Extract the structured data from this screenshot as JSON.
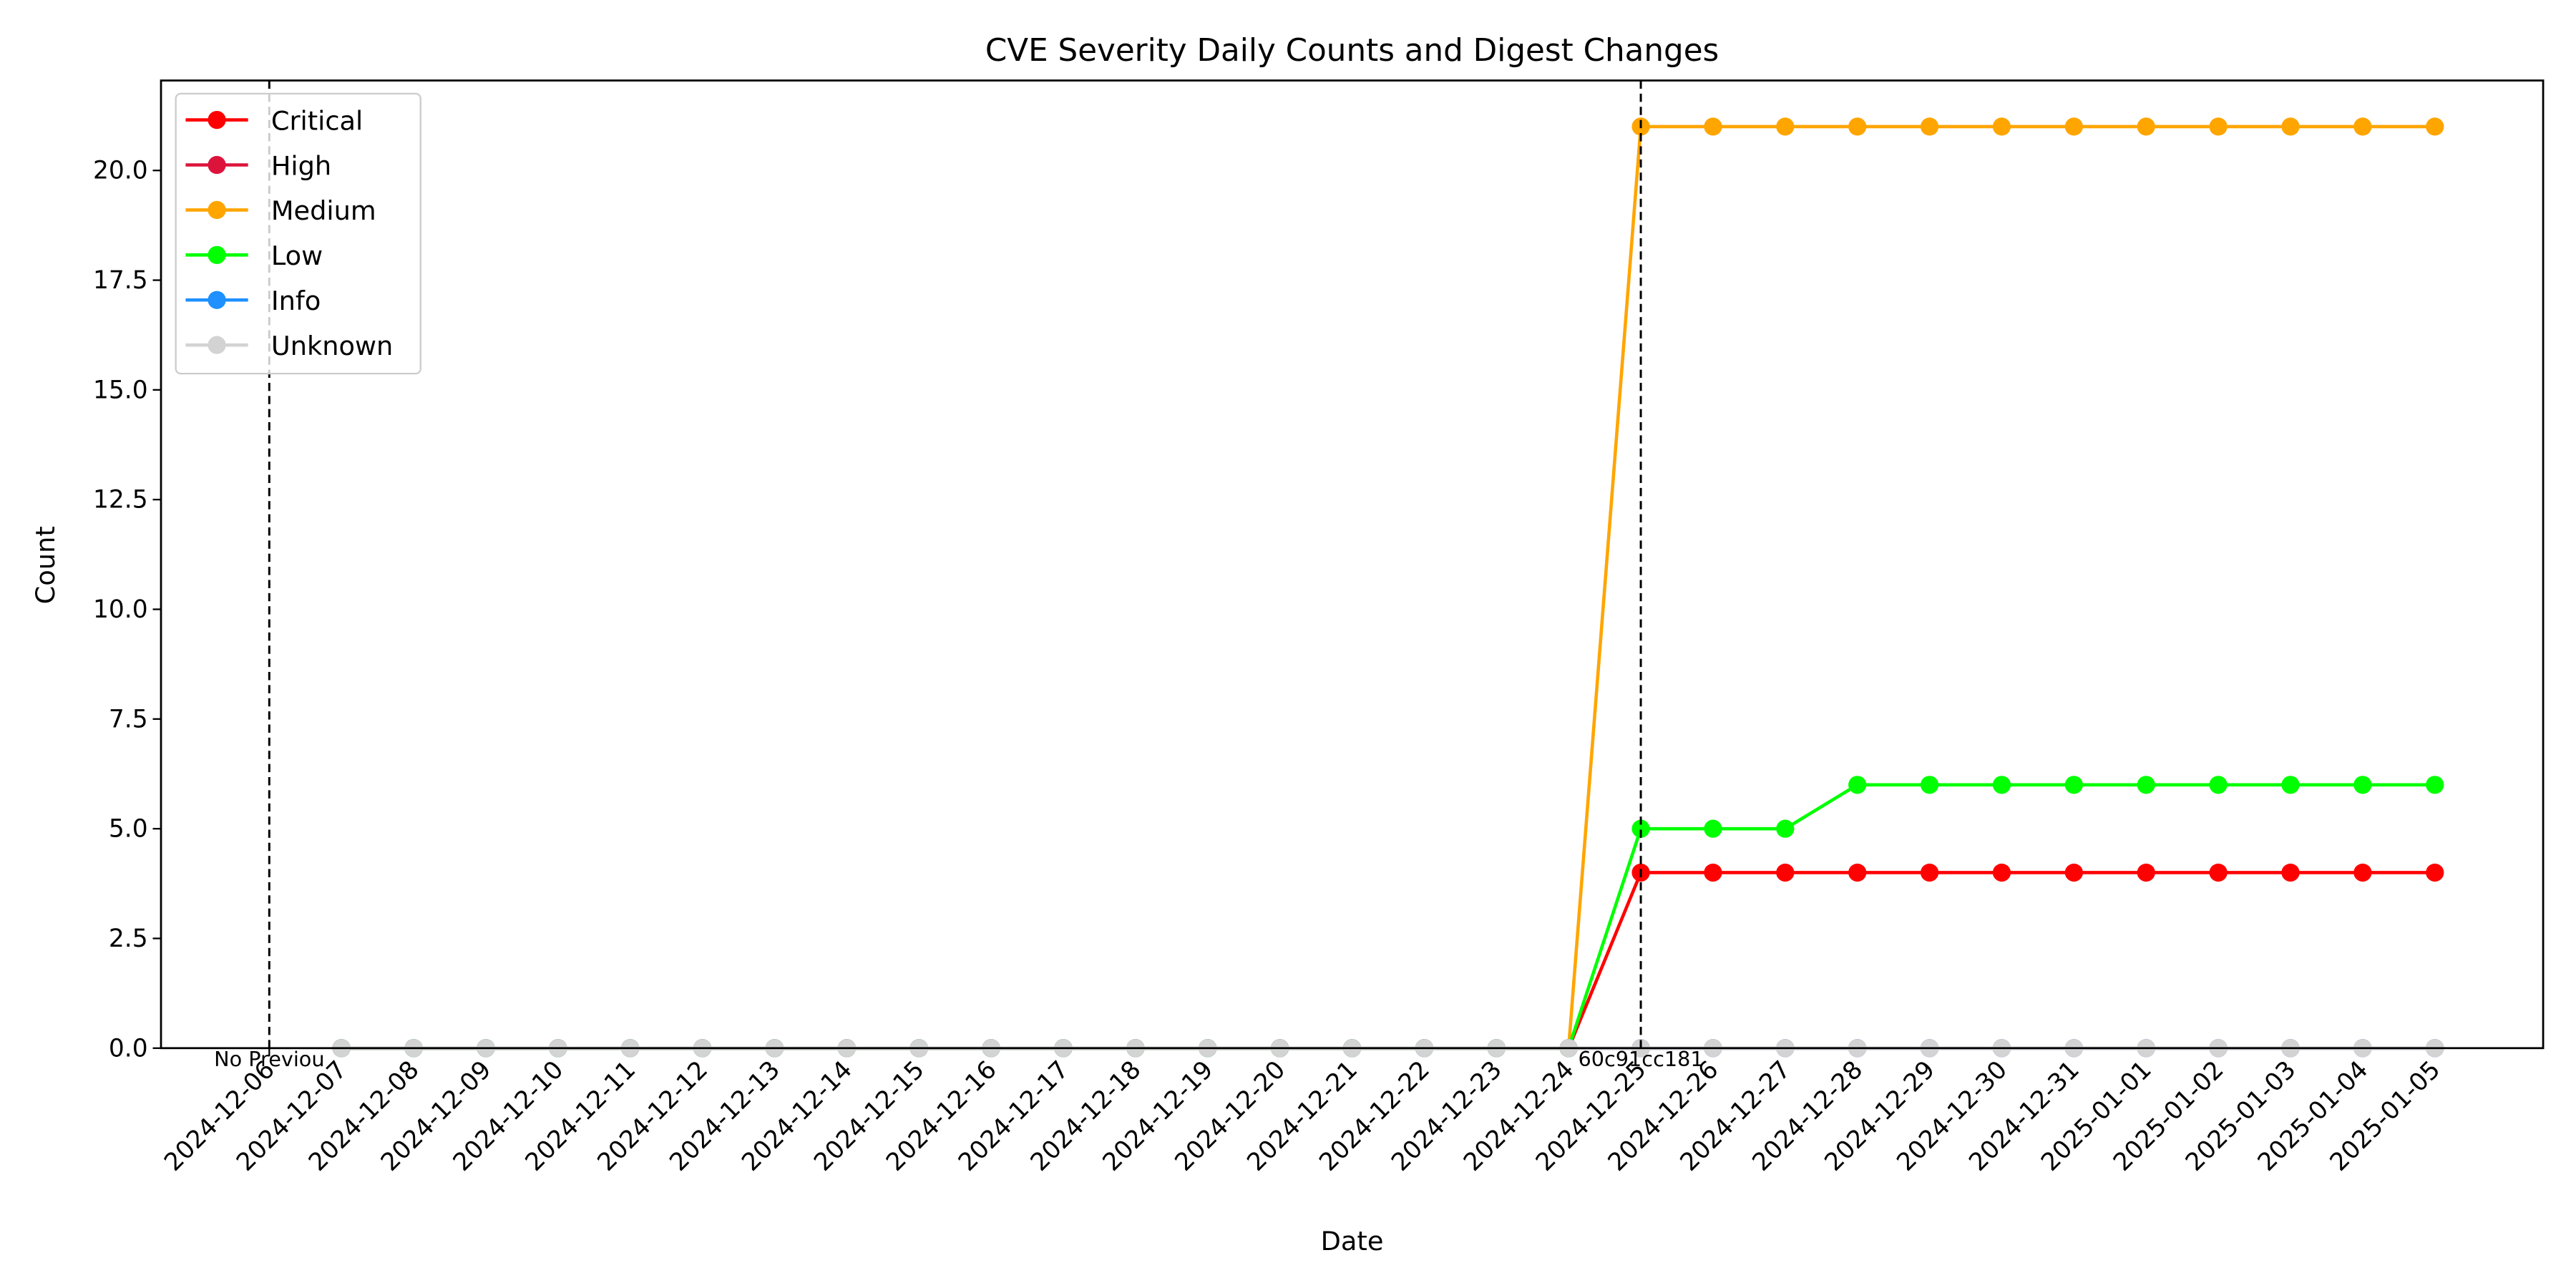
{
  "chart_data": {
    "type": "line",
    "title": "CVE Severity Daily Counts and Digest Changes",
    "xlabel": "Date",
    "ylabel": "Count",
    "categories": [
      "2024-12-06",
      "2024-12-07",
      "2024-12-08",
      "2024-12-09",
      "2024-12-10",
      "2024-12-11",
      "2024-12-12",
      "2024-12-13",
      "2024-12-14",
      "2024-12-15",
      "2024-12-16",
      "2024-12-17",
      "2024-12-18",
      "2024-12-19",
      "2024-12-20",
      "2024-12-21",
      "2024-12-22",
      "2024-12-23",
      "2024-12-24",
      "2024-12-25",
      "2024-12-26",
      "2024-12-27",
      "2024-12-28",
      "2024-12-29",
      "2024-12-30",
      "2024-12-31",
      "2025-01-01",
      "2025-01-02",
      "2025-01-03",
      "2025-01-04",
      "2025-01-05"
    ],
    "series": [
      {
        "name": "Critical",
        "color": "#ff0000",
        "values": [
          null,
          0,
          0,
          0,
          0,
          0,
          0,
          0,
          0,
          0,
          0,
          0,
          0,
          0,
          0,
          0,
          0,
          0,
          0,
          4,
          4,
          4,
          4,
          4,
          4,
          4,
          4,
          4,
          4,
          4,
          4
        ]
      },
      {
        "name": "High",
        "color": "#dc143c",
        "values": [
          null,
          0,
          0,
          0,
          0,
          0,
          0,
          0,
          0,
          0,
          0,
          0,
          0,
          0,
          0,
          0,
          0,
          0,
          0,
          0,
          0,
          0,
          0,
          0,
          0,
          0,
          0,
          0,
          0,
          0,
          0
        ]
      },
      {
        "name": "Medium",
        "color": "#ffa500",
        "values": [
          null,
          0,
          0,
          0,
          0,
          0,
          0,
          0,
          0,
          0,
          0,
          0,
          0,
          0,
          0,
          0,
          0,
          0,
          0,
          21,
          21,
          21,
          21,
          21,
          21,
          21,
          21,
          21,
          21,
          21,
          21
        ]
      },
      {
        "name": "Low",
        "color": "#00ff00",
        "values": [
          null,
          0,
          0,
          0,
          0,
          0,
          0,
          0,
          0,
          0,
          0,
          0,
          0,
          0,
          0,
          0,
          0,
          0,
          0,
          5,
          5,
          5,
          6,
          6,
          6,
          6,
          6,
          6,
          6,
          6,
          6
        ]
      },
      {
        "name": "Info",
        "color": "#1e90ff",
        "values": [
          null,
          0,
          0,
          0,
          0,
          0,
          0,
          0,
          0,
          0,
          0,
          0,
          0,
          0,
          0,
          0,
          0,
          0,
          0,
          0,
          0,
          0,
          0,
          0,
          0,
          0,
          0,
          0,
          0,
          0,
          0
        ]
      },
      {
        "name": "Unknown",
        "color": "#d3d3d3",
        "values": [
          null,
          0,
          0,
          0,
          0,
          0,
          0,
          0,
          0,
          0,
          0,
          0,
          0,
          0,
          0,
          0,
          0,
          0,
          0,
          0,
          0,
          0,
          0,
          0,
          0,
          0,
          0,
          0,
          0,
          0,
          0
        ]
      }
    ],
    "ylim": [
      0,
      22.05
    ],
    "yticks": [
      {
        "value": 0,
        "label": "0.0"
      },
      {
        "value": 2.5,
        "label": "2.5"
      },
      {
        "value": 5,
        "label": "5.0"
      },
      {
        "value": 7.5,
        "label": "7.5"
      },
      {
        "value": 10,
        "label": "10.0"
      },
      {
        "value": 12.5,
        "label": "12.5"
      },
      {
        "value": 15,
        "label": "15.0"
      },
      {
        "value": 17.5,
        "label": "17.5"
      },
      {
        "value": 20,
        "label": "20.0"
      }
    ],
    "annotations": [
      {
        "x": "2024-12-06",
        "label": "No Previou"
      },
      {
        "x": "2024-12-25",
        "label": "60c91cc181"
      }
    ],
    "legend": "upper left",
    "grid": false
  }
}
